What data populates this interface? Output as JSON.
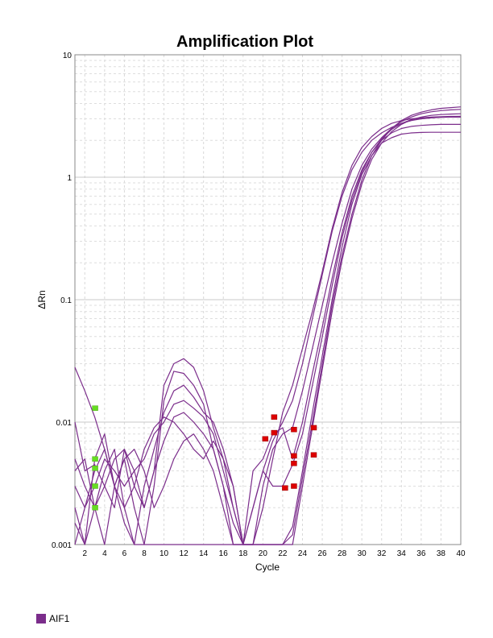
{
  "chart_data": {
    "type": "line",
    "title": "Amplification Plot",
    "xlabel": "Cycle",
    "ylabel": "ΔRn",
    "xlim": [
      1,
      40
    ],
    "ylim": [
      0.001,
      10
    ],
    "y_scale": "log",
    "grid": true,
    "x_ticks": [
      2,
      4,
      6,
      8,
      10,
      12,
      14,
      16,
      18,
      20,
      22,
      24,
      26,
      28,
      30,
      32,
      34,
      36,
      38,
      40
    ],
    "y_ticks": [
      0.001,
      0.01,
      0.1,
      1,
      10
    ],
    "y_tick_labels": [
      "0.001",
      "0.01",
      "0.1",
      "1",
      "10"
    ],
    "line_color": "#7b2d8b",
    "legend_position": "bottom-left",
    "legend": [
      {
        "name": "AIF1",
        "color": "#7b2d8b"
      }
    ],
    "series": [
      {
        "name": "AIF1",
        "x": [
          1,
          2,
          3,
          4,
          5,
          6,
          7,
          8,
          9,
          10,
          11,
          12,
          13,
          14,
          15,
          16,
          17,
          18,
          19,
          20,
          21,
          22,
          23,
          24,
          25,
          26,
          27,
          28,
          29,
          30,
          31,
          32,
          33,
          34,
          35,
          36,
          37,
          38,
          39,
          40
        ],
        "y": [
          0.028,
          0.018,
          0.011,
          0.006,
          0.003,
          0.0015,
          0.001,
          0.001,
          0.001,
          0.001,
          0.001,
          0.001,
          0.001,
          0.001,
          0.001,
          0.001,
          0.001,
          0.001,
          0.001,
          0.001,
          0.001,
          0.001,
          0.0012,
          0.0035,
          0.01,
          0.03,
          0.09,
          0.23,
          0.5,
          0.95,
          1.5,
          2.0,
          2.5,
          2.9,
          3.2,
          3.4,
          3.55,
          3.65,
          3.7,
          3.75
        ]
      },
      {
        "name": "AIF1",
        "x": [
          1,
          2,
          3,
          4,
          5,
          6,
          7,
          8,
          9,
          10,
          11,
          12,
          13,
          14,
          15,
          16,
          17,
          18,
          19,
          20,
          21,
          22,
          23,
          24,
          25,
          26,
          27,
          28,
          29,
          30,
          31,
          32,
          33,
          34,
          35,
          36,
          37,
          38,
          39,
          40
        ],
        "y": [
          0.01,
          0.004,
          0.0045,
          0.003,
          0.002,
          0.006,
          0.003,
          0.002,
          0.004,
          0.02,
          0.03,
          0.033,
          0.028,
          0.018,
          0.009,
          0.005,
          0.002,
          0.001,
          0.001,
          0.001,
          0.001,
          0.001,
          0.001,
          0.003,
          0.009,
          0.027,
          0.08,
          0.21,
          0.46,
          0.88,
          1.4,
          1.9,
          2.35,
          2.7,
          2.95,
          3.1,
          3.2,
          3.25,
          3.28,
          3.3
        ]
      },
      {
        "name": "AIF1",
        "x": [
          1,
          2,
          3,
          4,
          5,
          6,
          7,
          8,
          9,
          10,
          11,
          12,
          13,
          14,
          15,
          16,
          17,
          18,
          19,
          20,
          21,
          22,
          23,
          24,
          25,
          26,
          27,
          28,
          29,
          30,
          31,
          32,
          33,
          34,
          35,
          36,
          37,
          38,
          39,
          40
        ],
        "y": [
          0.002,
          0.001,
          0.005,
          0.008,
          0.003,
          0.005,
          0.002,
          0.001,
          0.003,
          0.015,
          0.026,
          0.025,
          0.02,
          0.014,
          0.006,
          0.003,
          0.001,
          0.001,
          0.001,
          0.001,
          0.001,
          0.001,
          0.0014,
          0.004,
          0.012,
          0.035,
          0.1,
          0.27,
          0.6,
          1.05,
          1.5,
          1.9,
          2.1,
          2.25,
          2.3,
          2.32,
          2.33,
          2.33,
          2.33,
          2.33
        ]
      },
      {
        "name": "AIF1",
        "x": [
          1,
          2,
          3,
          4,
          5,
          6,
          7,
          8,
          9,
          10,
          11,
          12,
          13,
          14,
          15,
          16,
          17,
          18,
          19,
          20,
          21,
          22,
          23,
          24,
          25,
          26,
          27,
          28,
          29,
          30,
          31,
          32,
          33,
          34,
          35,
          36,
          37,
          38,
          39,
          40
        ],
        "y": [
          0.005,
          0.003,
          0.002,
          0.004,
          0.006,
          0.002,
          0.001,
          0.003,
          0.006,
          0.012,
          0.018,
          0.02,
          0.016,
          0.012,
          0.01,
          0.006,
          0.003,
          0.001,
          0.004,
          0.005,
          0.008,
          0.009,
          0.005,
          0.01,
          0.025,
          0.06,
          0.15,
          0.35,
          0.7,
          1.15,
          1.6,
          2.0,
          2.3,
          2.5,
          2.6,
          2.65,
          2.68,
          2.7,
          2.7,
          2.7
        ]
      },
      {
        "name": "AIF1",
        "x": [
          1,
          2,
          3,
          4,
          5,
          6,
          7,
          8,
          9,
          10,
          11,
          12,
          13,
          14,
          15,
          16,
          17,
          18,
          19,
          20,
          21,
          22,
          23,
          24,
          25,
          26,
          27,
          28,
          29,
          30,
          31,
          32,
          33,
          34,
          35,
          36,
          37,
          38,
          39,
          40
        ],
        "y": [
          0.003,
          0.002,
          0.003,
          0.005,
          0.004,
          0.003,
          0.004,
          0.005,
          0.008,
          0.01,
          0.014,
          0.015,
          0.013,
          0.011,
          0.008,
          0.004,
          0.002,
          0.001,
          0.002,
          0.004,
          0.003,
          0.003,
          0.0045,
          0.008,
          0.02,
          0.05,
          0.13,
          0.32,
          0.65,
          1.1,
          1.6,
          2.05,
          2.45,
          2.75,
          2.95,
          3.05,
          3.1,
          3.12,
          3.14,
          3.15
        ]
      },
      {
        "name": "AIF1",
        "x": [
          1,
          2,
          3,
          4,
          5,
          6,
          7,
          8,
          9,
          10,
          11,
          12,
          13,
          14,
          15,
          16,
          17,
          18,
          19,
          20,
          21,
          22,
          23,
          24,
          25,
          26,
          27,
          28,
          29,
          30,
          31,
          32,
          33,
          34,
          35,
          36,
          37,
          38,
          39,
          40
        ],
        "y": [
          0.0015,
          0.001,
          0.002,
          0.003,
          0.005,
          0.006,
          0.004,
          0.002,
          0.004,
          0.007,
          0.011,
          0.012,
          0.01,
          0.008,
          0.006,
          0.003,
          0.0015,
          0.001,
          0.001,
          0.003,
          0.006,
          0.008,
          0.009,
          0.018,
          0.04,
          0.09,
          0.2,
          0.42,
          0.8,
          1.25,
          1.7,
          2.1,
          2.5,
          2.85,
          3.1,
          3.3,
          3.42,
          3.5,
          3.55,
          3.58
        ]
      },
      {
        "name": "AIF1",
        "x": [
          1,
          2,
          3,
          4,
          5,
          6,
          7,
          8,
          9,
          10,
          11,
          12,
          13,
          14,
          15,
          16,
          17,
          18,
          19,
          20,
          21,
          22,
          23,
          24,
          25,
          26,
          27,
          28,
          29,
          30,
          31,
          32,
          33,
          34,
          35,
          36,
          37,
          38,
          39,
          40
        ],
        "y": [
          0.004,
          0.005,
          0.002,
          0.001,
          0.003,
          0.005,
          0.006,
          0.004,
          0.002,
          0.003,
          0.005,
          0.007,
          0.008,
          0.006,
          0.004,
          0.002,
          0.001,
          0.001,
          0.002,
          0.004,
          0.007,
          0.01,
          0.015,
          0.03,
          0.07,
          0.16,
          0.36,
          0.7,
          1.15,
          1.6,
          2.0,
          2.3,
          2.55,
          2.75,
          2.9,
          3.0,
          3.05,
          3.08,
          3.1,
          3.1
        ]
      },
      {
        "name": "AIF1",
        "x": [
          1,
          2,
          3,
          4,
          5,
          6,
          7,
          8,
          9,
          10,
          11,
          12,
          13,
          14,
          15,
          16,
          17,
          18,
          19,
          20,
          21,
          22,
          23,
          24,
          25,
          26,
          27,
          28,
          29,
          30,
          31,
          32,
          33,
          34,
          35,
          36,
          37,
          38,
          39,
          40
        ],
        "y": [
          0.001,
          0.002,
          0.004,
          0.006,
          0.003,
          0.002,
          0.003,
          0.006,
          0.009,
          0.011,
          0.01,
          0.008,
          0.006,
          0.005,
          0.007,
          0.005,
          0.003,
          0.001,
          0.001,
          0.002,
          0.005,
          0.012,
          0.02,
          0.04,
          0.08,
          0.17,
          0.38,
          0.75,
          1.25,
          1.75,
          2.15,
          2.5,
          2.75,
          2.9,
          3.0,
          3.05,
          3.08,
          3.1,
          3.1,
          3.1
        ]
      }
    ],
    "markers_green": [
      {
        "x": 3,
        "y": 0.013
      },
      {
        "x": 3,
        "y": 0.005
      },
      {
        "x": 3,
        "y": 0.0042
      },
      {
        "x": 3,
        "y": 0.003
      },
      {
        "x": 3,
        "y": 0.002
      }
    ],
    "markers_red": [
      {
        "x": 20.2,
        "y": 0.0073
      },
      {
        "x": 21.1,
        "y": 0.011
      },
      {
        "x": 21.1,
        "y": 0.0082
      },
      {
        "x": 22.2,
        "y": 0.0029
      },
      {
        "x": 23.1,
        "y": 0.0087
      },
      {
        "x": 23.1,
        "y": 0.0053
      },
      {
        "x": 23.1,
        "y": 0.0046
      },
      {
        "x": 23.1,
        "y": 0.003
      },
      {
        "x": 25.1,
        "y": 0.009
      },
      {
        "x": 25.1,
        "y": 0.0054
      }
    ]
  }
}
